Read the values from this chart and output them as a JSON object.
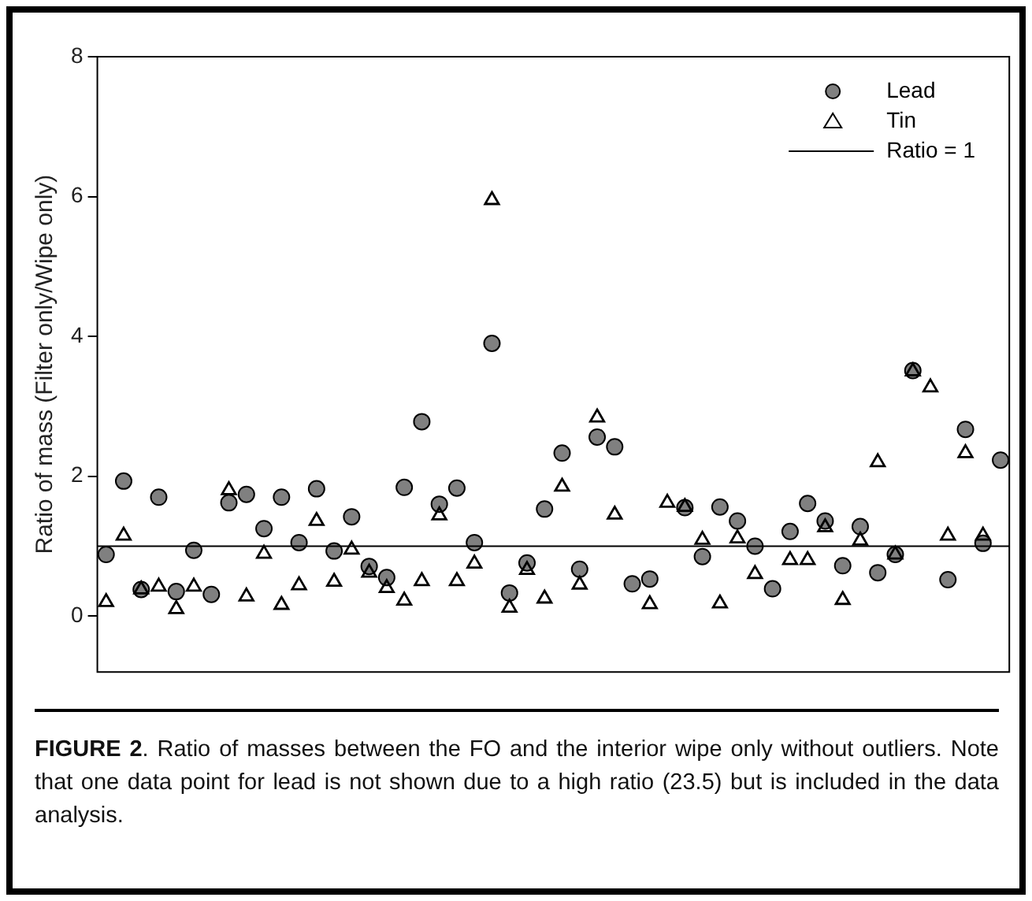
{
  "chart_data": {
    "type": "scatter",
    "ylabel": "Ratio of mass (Filter only/Wipe only)",
    "categories": [
      null,
      null,
      null,
      null,
      null,
      null,
      null,
      null,
      null,
      null,
      null,
      null,
      null,
      null,
      null,
      null,
      null,
      null,
      null,
      null,
      null,
      null,
      null,
      null,
      null,
      null,
      null,
      null,
      null,
      null,
      null,
      null,
      null,
      null,
      null,
      null,
      null,
      null,
      null,
      null,
      null,
      null,
      null,
      null,
      null,
      null,
      null,
      null,
      null,
      null,
      null,
      null
    ],
    "series": [
      {
        "name": "Lead",
        "color": "#808080",
        "marker": "circle",
        "values": [
          0.88,
          1.93,
          0.38,
          1.7,
          0.35,
          0.94,
          0.31,
          1.62,
          1.74,
          1.25,
          1.7,
          1.05,
          1.82,
          0.93,
          1.42,
          0.71,
          0.55,
          1.84,
          2.78,
          1.6,
          1.83,
          1.05,
          3.9,
          0.33,
          0.76,
          1.53,
          2.33,
          0.67,
          2.56,
          2.42,
          0.46,
          0.53,
          null,
          1.55,
          0.85,
          1.56,
          1.36,
          1.0,
          0.39,
          1.21,
          1.61,
          1.36,
          0.72,
          1.28,
          0.62,
          0.88,
          3.51,
          null,
          0.52,
          2.67,
          1.04,
          2.23
        ]
      },
      {
        "name": "Tin",
        "color": "#000000",
        "marker": "triangle",
        "values": [
          0.2,
          1.15,
          0.38,
          0.42,
          0.1,
          0.42,
          null,
          1.8,
          0.28,
          0.89,
          0.16,
          0.44,
          1.36,
          0.49,
          0.95,
          0.62,
          0.4,
          0.22,
          0.5,
          1.44,
          0.5,
          0.75,
          5.95,
          0.12,
          0.66,
          0.25,
          1.85,
          0.45,
          2.84,
          1.45,
          null,
          0.17,
          1.62,
          1.56,
          1.09,
          0.18,
          1.11,
          0.6,
          null,
          0.8,
          0.8,
          1.27,
          0.23,
          1.08,
          2.2,
          0.88,
          3.5,
          3.27,
          1.15,
          2.33,
          1.15,
          null
        ]
      }
    ],
    "ylim": [
      -0.8,
      8
    ],
    "yticks": [
      0,
      2,
      4,
      6,
      8
    ],
    "grid": false,
    "legend": "top right",
    "tick_labels": "y",
    "ref_lines": [
      {
        "axis": "y",
        "value": 1,
        "label": "Ratio = 1",
        "color": "#000000"
      }
    ],
    "annotations": [
      "FIGURE 2. Ratio of masses between the FO and the interior wipe only without outliers. Note that one data point for lead is not shown due to a high ratio (23.5) but is included in the data analysis."
    ]
  }
}
